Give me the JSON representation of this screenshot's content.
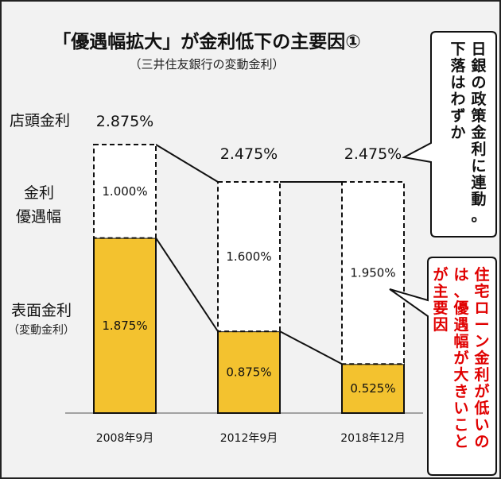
{
  "header": {
    "title": "「優遇幅拡大」が金利低下の主要因①",
    "subtitle": "（三井住友銀行の変動金利）"
  },
  "row_labels": {
    "storefront": "店頭金利",
    "discount_line1": "金利",
    "discount_line2": "優遇幅",
    "surface_line1": "表面金利",
    "surface_line2": "（変動金利）"
  },
  "callouts": {
    "boj": [
      "日銀の政策金利に連動。",
      "下落はわずか"
    ],
    "main_cause": [
      "住宅ローン金利が低いの",
      "は、優遇幅が大きいこと",
      "が主要因"
    ]
  },
  "colors": {
    "background": "#f2f2f2",
    "surface_bar": "#f3c22f",
    "discount_bar": "#ffffff",
    "callout_red_text": "#e00000"
  },
  "chart_data": {
    "type": "bar",
    "stacked": true,
    "categories": [
      "2008年9月",
      "2012年9月",
      "2018年12月"
    ],
    "series": [
      {
        "name": "表面金利（変動金利）",
        "values": [
          1.875,
          0.875,
          0.525
        ],
        "labels": [
          "1.875%",
          "0.875%",
          "0.525%"
        ]
      },
      {
        "name": "金利優遇幅",
        "values": [
          1.0,
          1.6,
          1.95
        ],
        "labels": [
          "1.000%",
          "1.600%",
          "1.950%"
        ]
      }
    ],
    "totals": {
      "name": "店頭金利",
      "values": [
        2.875,
        2.475,
        2.475
      ],
      "labels": [
        "2.875%",
        "2.475%",
        "2.475%"
      ]
    },
    "ylim": [
      0,
      2.875
    ]
  }
}
